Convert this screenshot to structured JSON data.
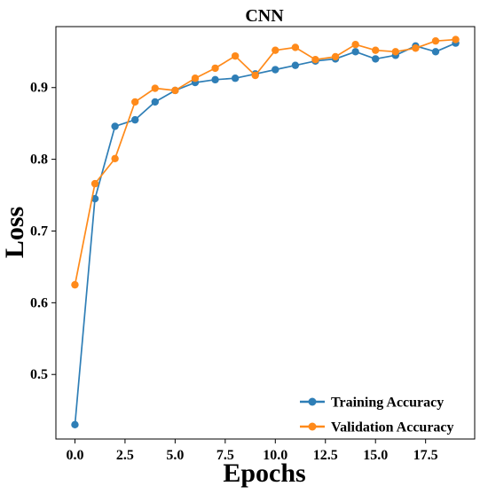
{
  "chart_data": {
    "type": "line",
    "title": "CNN",
    "xlabel": "Epochs",
    "ylabel": "Loss",
    "xlim": [
      -0.95,
      19.95
    ],
    "ylim": [
      0.41,
      0.985
    ],
    "xticks": [
      0.0,
      2.5,
      5.0,
      7.5,
      10.0,
      12.5,
      15.0,
      17.5
    ],
    "xtick_labels": [
      "0.0",
      "2.5",
      "5.0",
      "7.5",
      "10.0",
      "12.5",
      "15.0",
      "17.5"
    ],
    "yticks": [
      0.5,
      0.6,
      0.7,
      0.8,
      0.9
    ],
    "ytick_labels": [
      "0.5",
      "0.6",
      "0.7",
      "0.8",
      "0.9"
    ],
    "grid": false,
    "legend_position": "bottom-right",
    "x": [
      0,
      1,
      2,
      3,
      4,
      5,
      6,
      7,
      8,
      9,
      10,
      11,
      12,
      13,
      14,
      15,
      16,
      17,
      18,
      19
    ],
    "series": [
      {
        "name": "Training Accuracy",
        "color": "#2e7eb6",
        "values": [
          0.43,
          0.745,
          0.846,
          0.855,
          0.88,
          0.896,
          0.907,
          0.911,
          0.913,
          0.919,
          0.925,
          0.931,
          0.937,
          0.94,
          0.95,
          0.94,
          0.945,
          0.958,
          0.95,
          0.962
        ]
      },
      {
        "name": "Validation Accuracy",
        "color": "#ff8a1a",
        "values": [
          0.625,
          0.766,
          0.801,
          0.88,
          0.899,
          0.896,
          0.913,
          0.927,
          0.944,
          0.917,
          0.952,
          0.956,
          0.939,
          0.943,
          0.96,
          0.952,
          0.95,
          0.955,
          0.965,
          0.967
        ]
      }
    ]
  }
}
